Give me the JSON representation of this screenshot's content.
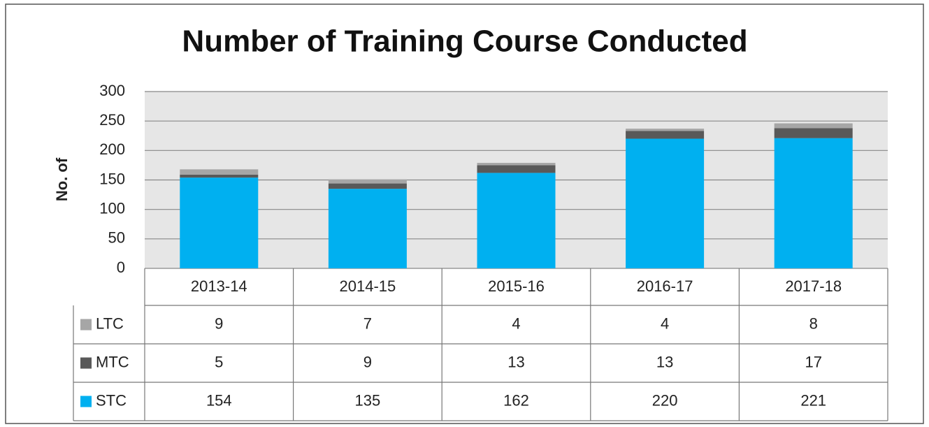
{
  "chart_data": {
    "type": "bar",
    "stacked": true,
    "title": "Number of Training Course Conducted",
    "y_label": "No. of",
    "categories": [
      "2013-14",
      "2014-15",
      "2015-16",
      "2016-17",
      "2017-18"
    ],
    "series": [
      {
        "name": "LTC",
        "color": "#a6a6a6",
        "values": [
          9,
          7,
          4,
          4,
          8
        ]
      },
      {
        "name": "MTC",
        "color": "#595959",
        "values": [
          5,
          9,
          13,
          13,
          17
        ]
      },
      {
        "name": "STC",
        "color": "#00b0f0",
        "values": [
          154,
          135,
          162,
          220,
          221
        ]
      }
    ],
    "ylim": [
      0,
      300
    ],
    "yticks": [
      0,
      50,
      100,
      150,
      200,
      250,
      300
    ],
    "grid": true
  }
}
